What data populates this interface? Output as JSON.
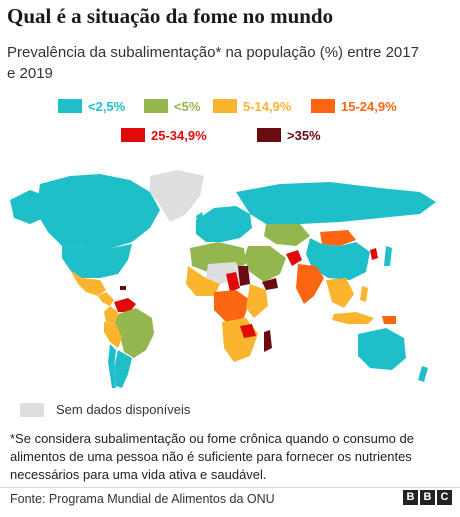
{
  "header": {
    "title": "Qual é a situação da fome no mundo",
    "subtitle": "Prevalência da subalimentação* na população (%) entre 2017 e 2019"
  },
  "legend": [
    {
      "label": "<2,5%",
      "color": "#1fbfc9",
      "text_color": "#1fbfc9"
    },
    {
      "label": "<5%",
      "color": "#93b64e",
      "text_color": "#93b64e"
    },
    {
      "label": "5-14,9%",
      "color": "#fab42e",
      "text_color": "#fab42e"
    },
    {
      "label": "15-24,9%",
      "color": "#fd6611",
      "text_color": "#fd6611"
    },
    {
      "label": "25-34,9%",
      "color": "#e10a0a",
      "text_color": "#e10a0a"
    },
    {
      "label": ">35%",
      "color": "#6a0b12",
      "text_color": "#6a0b12"
    }
  ],
  "no_data": {
    "label": "Sem dados disponíveis",
    "color": "#dedede"
  },
  "footnote": "*Se considera subalimentação ou fome crônica quando o consumo de alimentos de uma pessoa não é suficiente para fornecer os nutrientes necessários para uma vida ativa e saudável.",
  "source": "Fonte: Programa Mundial de Alimentos da ONU",
  "logo": [
    "B",
    "B",
    "C"
  ]
}
